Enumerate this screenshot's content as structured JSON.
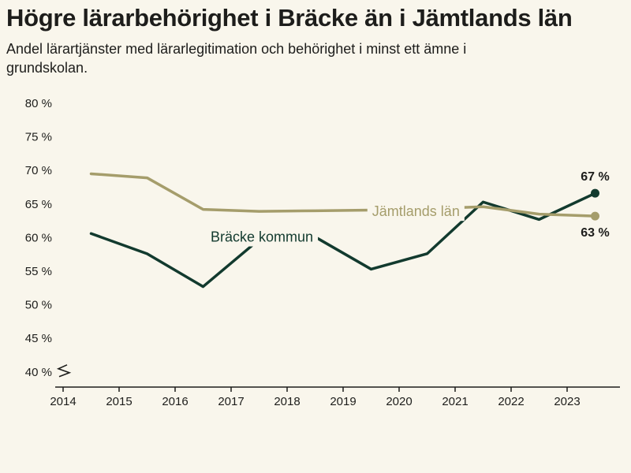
{
  "header": {
    "title": "Högre lärarbehörighet i Bräcke än i Jämtlands län",
    "subtitle": "Andel lärartjänster med lärarlegitimation och behörighet i minst ett ämne i grundskolan."
  },
  "colors": {
    "background": "#f9f6ec",
    "text": "#1d1d1b",
    "bracke": "#123a2e",
    "jamtland": "#a59d6b"
  },
  "chart_data": {
    "type": "line",
    "title": "Högre lärarbehörighet i Bräcke än i Jämtlands län",
    "subtitle": "Andel lärartjänster med lärarlegitimation och behörighet i minst ett ämne i grundskolan.",
    "x": [
      2014.5,
      2015.5,
      2016.5,
      2017.5,
      2018.5,
      2019.5,
      2020.5,
      2021.5,
      2022.5,
      2023.5
    ],
    "series": [
      {
        "name": "Bräcke kommun",
        "color": "#123a2e",
        "values": [
          60.6,
          57.6,
          52.7,
          59.7,
          60.1,
          55.3,
          57.6,
          65.3,
          62.7,
          66.6
        ],
        "end_label": "67 %",
        "end_label_position": "above",
        "label": {
          "x": 2017.55,
          "y": 60.1
        }
      },
      {
        "name": "Jämtlands län",
        "color": "#a59d6b",
        "values": [
          69.5,
          68.9,
          64.2,
          63.9,
          64.0,
          64.1,
          64.3,
          64.6,
          63.5,
          63.2
        ],
        "end_label": "63 %",
        "end_label_position": "below",
        "label": {
          "x": 2020.3,
          "y": 63.9
        }
      }
    ],
    "ylim": [
      40,
      80
    ],
    "yticks": [
      40,
      45,
      50,
      55,
      60,
      65,
      70,
      75,
      80
    ],
    "ytick_suffix": " %",
    "xticks": [
      2014,
      2015,
      2016,
      2017,
      2018,
      2019,
      2020,
      2021,
      2022,
      2023
    ],
    "axis_break": true,
    "grid": false,
    "legend": "inline-labels"
  }
}
